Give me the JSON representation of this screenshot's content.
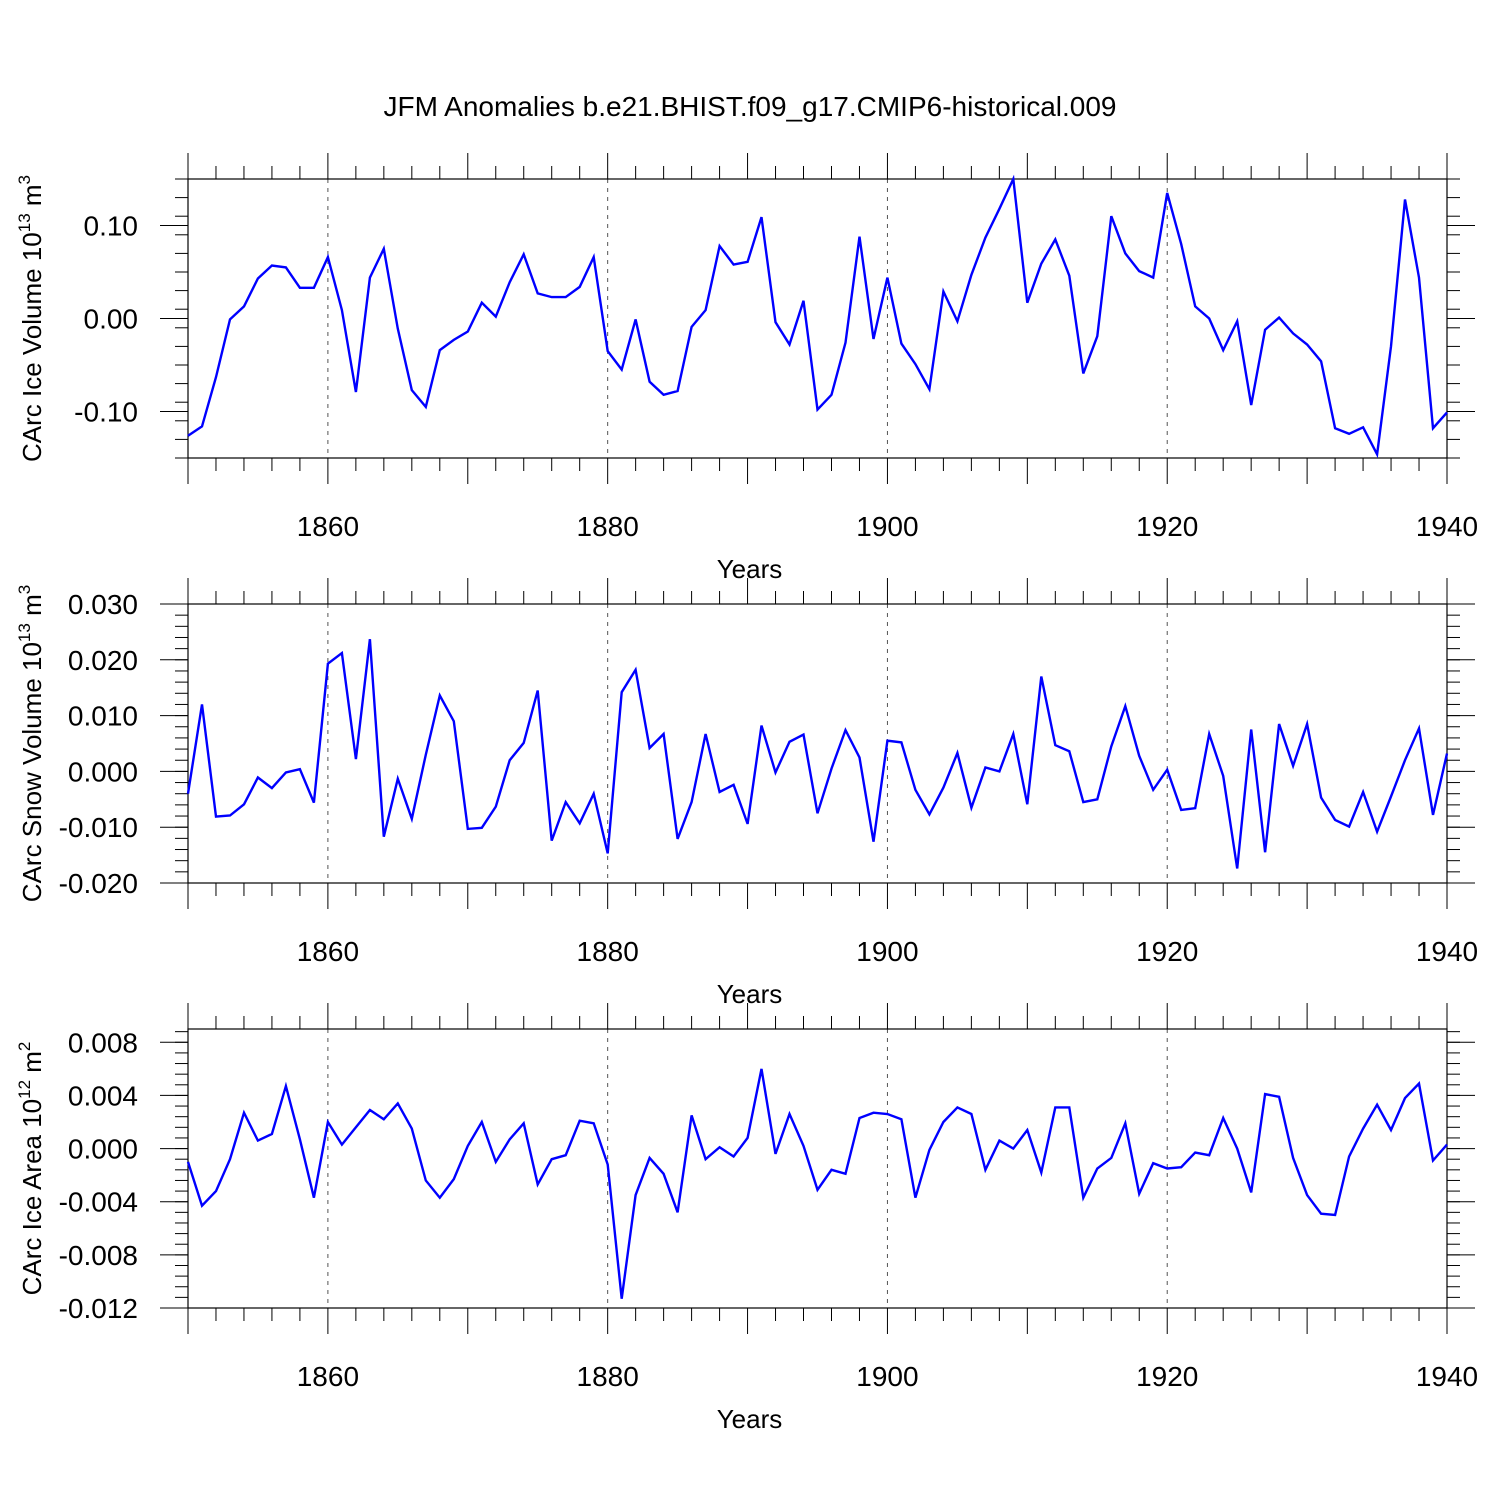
{
  "chart_data": {
    "title": "JFM Anomalies b.e21.BHIST.f09_g17.CMIP6-historical.009",
    "colors": {
      "line": "#0000ff",
      "grid": "#555555"
    },
    "panels": [
      {
        "type": "line",
        "ylabel": "CArc Ice Volume",
        "ylabel_unit": "10",
        "ylabel_unit_exp": "13",
        "ylabel_unit_suffix": "m",
        "ylabel_unit_suffix_exp": "3",
        "xlabel": "Years",
        "xlim": [
          1850,
          1940
        ],
        "ylim": [
          -0.15,
          0.15
        ],
        "xticks": [
          1860,
          1880,
          1900,
          1920,
          1940
        ],
        "xtick_labels": [
          "1860",
          "1880",
          "1900",
          "1920",
          "1940"
        ],
        "yticks": [
          -0.1,
          0.0,
          0.1
        ],
        "ytick_labels": [
          "-0.10",
          "0.00",
          "0.10"
        ],
        "x_start": 1850,
        "values": [
          -0.126,
          -0.116,
          -0.063,
          -0.001,
          0.013,
          0.043,
          0.057,
          0.055,
          0.033,
          0.033,
          0.066,
          0.009,
          -0.079,
          0.044,
          0.075,
          -0.011,
          -0.077,
          -0.095,
          -0.034,
          -0.023,
          -0.014,
          0.017,
          0.002,
          0.039,
          0.069,
          0.027,
          0.023,
          0.023,
          0.034,
          0.066,
          -0.035,
          -0.055,
          -0.001,
          -0.068,
          -0.082,
          -0.078,
          -0.009,
          0.009,
          0.078,
          0.058,
          0.061,
          0.109,
          -0.004,
          -0.028,
          0.019,
          -0.098,
          -0.082,
          -0.026,
          0.088,
          -0.022,
          0.044,
          -0.027,
          -0.049,
          -0.076,
          0.029,
          -0.003,
          0.047,
          0.087,
          0.118,
          0.15,
          0.017,
          0.059,
          0.085,
          0.046,
          -0.059,
          -0.019,
          0.11,
          0.07,
          0.051,
          0.044,
          0.135,
          0.08,
          0.013,
          0.0,
          -0.034,
          -0.003,
          -0.093,
          -0.012,
          0.001,
          -0.016,
          -0.028,
          -0.046,
          -0.118,
          -0.124,
          -0.117,
          -0.146,
          -0.03,
          0.128,
          0.044,
          -0.118,
          -0.101
        ]
      },
      {
        "type": "line",
        "ylabel": "CArc Snow Volume",
        "ylabel_unit": "10",
        "ylabel_unit_exp": "13",
        "ylabel_unit_suffix": "m",
        "ylabel_unit_suffix_exp": "3",
        "xlabel": "Years",
        "xlim": [
          1850,
          1940
        ],
        "ylim": [
          -0.02,
          0.03
        ],
        "xticks": [
          1860,
          1880,
          1900,
          1920,
          1940
        ],
        "xtick_labels": [
          "1860",
          "1880",
          "1900",
          "1920",
          "1940"
        ],
        "yticks": [
          -0.02,
          -0.01,
          0.0,
          0.01,
          0.02,
          0.03
        ],
        "ytick_labels": [
          "-0.020",
          "-0.010",
          "0.000",
          "0.010",
          "0.020",
          "0.030"
        ],
        "x_start": 1850,
        "values": [
          -0.004,
          0.012,
          -0.0081,
          -0.0079,
          -0.0059,
          -0.0011,
          -0.003,
          -0.0002,
          0.0004,
          -0.0056,
          0.0193,
          0.0212,
          0.0022,
          0.0237,
          -0.0117,
          -0.0013,
          -0.0085,
          0.003,
          0.0136,
          0.009,
          -0.0103,
          -0.0101,
          -0.0063,
          0.002,
          0.0051,
          0.0145,
          -0.0124,
          -0.0055,
          -0.0093,
          -0.004,
          -0.0147,
          0.0142,
          0.0182,
          0.0042,
          0.0067,
          -0.0121,
          -0.0055,
          0.0067,
          -0.0037,
          -0.0024,
          -0.0094,
          0.0082,
          -0.0002,
          0.0053,
          0.0066,
          -0.0075,
          0.0005,
          0.0074,
          0.0025,
          -0.0126,
          0.0055,
          0.0052,
          -0.0033,
          -0.0077,
          -0.0029,
          0.0033,
          -0.0065,
          0.0007,
          0.0,
          0.0067,
          -0.0059,
          0.017,
          0.0047,
          0.0036,
          -0.0055,
          -0.005,
          0.0045,
          0.0117,
          0.0028,
          -0.0033,
          0.0003,
          -0.0069,
          -0.0066,
          0.0067,
          -0.0008,
          -0.0174,
          0.0075,
          -0.0145,
          0.0085,
          0.001,
          0.0085,
          -0.0047,
          -0.0087,
          -0.0099,
          -0.0037,
          -0.0108,
          -0.0045,
          0.002,
          0.0077,
          -0.0078,
          0.0032
        ]
      },
      {
        "type": "line",
        "ylabel": "CArc Ice Area",
        "ylabel_unit": "10",
        "ylabel_unit_exp": "12",
        "ylabel_unit_suffix": "m",
        "ylabel_unit_suffix_exp": "2",
        "xlabel": "Years",
        "xlim": [
          1850,
          1940
        ],
        "ylim": [
          -0.012,
          0.009
        ],
        "xticks": [
          1860,
          1880,
          1900,
          1920,
          1940
        ],
        "xtick_labels": [
          "1860",
          "1880",
          "1900",
          "1920",
          "1940"
        ],
        "yticks": [
          -0.012,
          -0.008,
          -0.004,
          0.0,
          0.004,
          0.008
        ],
        "ytick_labels": [
          "-0.012",
          "-0.008",
          "-0.004",
          "0.000",
          "0.004",
          "0.008"
        ],
        "x_start": 1850,
        "values": [
          -0.001,
          -0.0043,
          -0.0032,
          -0.0008,
          0.0027,
          0.0006,
          0.0011,
          0.0047,
          0.0007,
          -0.0037,
          0.002,
          0.0003,
          0.0016,
          0.0029,
          0.0022,
          0.0034,
          0.0015,
          -0.0024,
          -0.0037,
          -0.0023,
          0.0002,
          0.002,
          -0.001,
          0.0007,
          0.0019,
          -0.0027,
          -0.0008,
          -0.0005,
          0.0021,
          0.0019,
          -0.0012,
          -0.0113,
          -0.0035,
          -0.0007,
          -0.0019,
          -0.0048,
          0.0025,
          -0.0008,
          0.0001,
          -0.0006,
          0.0008,
          0.006,
          -0.0004,
          0.0026,
          0.0002,
          -0.0031,
          -0.0016,
          -0.0019,
          0.0023,
          0.0027,
          0.0026,
          0.0022,
          -0.0037,
          -0.0001,
          0.002,
          0.0031,
          0.0026,
          -0.0016,
          0.0006,
          0.0,
          0.0014,
          -0.0018,
          0.0031,
          0.0031,
          -0.0037,
          -0.0015,
          -0.0007,
          0.0019,
          -0.0034,
          -0.0011,
          -0.0015,
          -0.0014,
          -0.0003,
          -0.0005,
          0.0023,
          0.0,
          -0.0033,
          0.0041,
          0.0039,
          -0.0007,
          -0.0035,
          -0.0049,
          -0.005,
          -0.0006,
          0.0015,
          0.0033,
          0.0014,
          0.0038,
          0.0049,
          -0.0009,
          0.0003
        ]
      }
    ]
  }
}
